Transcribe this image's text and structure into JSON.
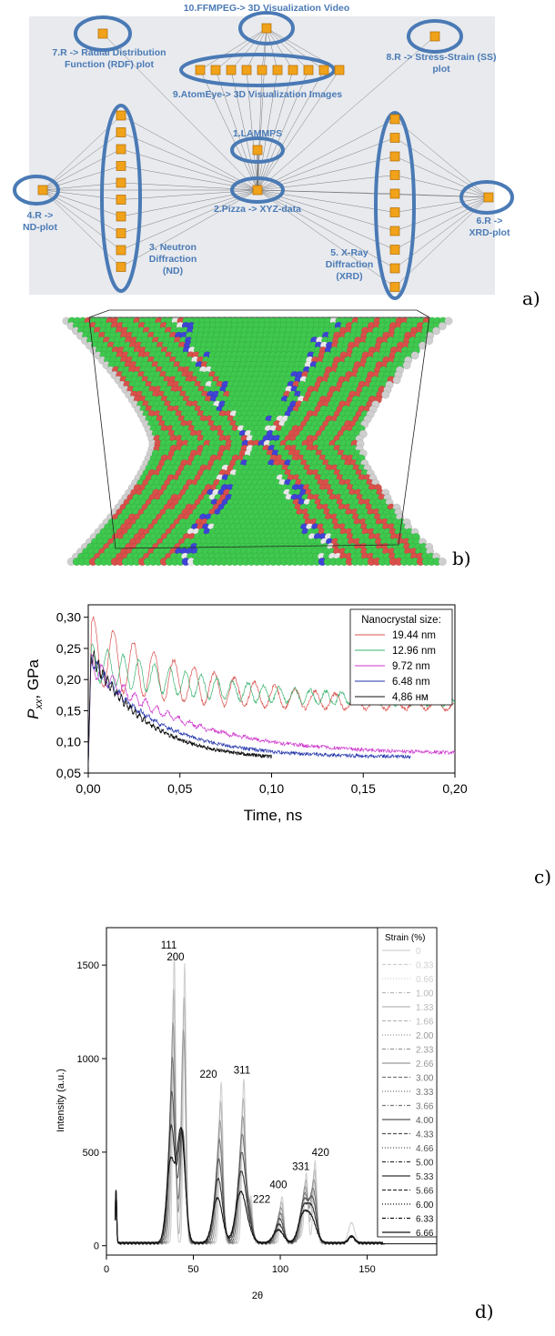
{
  "panel_labels": {
    "a": "a)",
    "b": "b)",
    "c": "c)",
    "d": "d)"
  },
  "workflow": {
    "colors": {
      "ellipse": "#4a7ab5",
      "label": "#4a7ab5",
      "node": "#f0a21a",
      "bg": "#e8eaee"
    },
    "nodes": {
      "n10": "10.FFMPEG-> 3D Visualization Video",
      "n7": "7.R -> Radial Distribution Function (RDF) plot",
      "n8": "8.R -> Stress-Strain (SS) plot",
      "n9": "9.AtomEye-> 3D Visualization Images",
      "n1": "1.LAMMPS",
      "n2": "2.Pizza -> XYZ-data",
      "n4": "4.R -> ND-plot",
      "n6": "6.R -> XRD-plot",
      "n3": "3. Neutron Diffraction (ND)",
      "n5": "5. X-Ray Diffraction (XRD)"
    }
  },
  "chart_data": [
    {
      "type": "line",
      "xlabel": "Time, ns",
      "ylabel": "P_xx, GPa",
      "xlim": [
        0,
        0.2
      ],
      "ylim": [
        0.05,
        0.32
      ],
      "xticks": [
        "0,00",
        "0,05",
        "0,10",
        "0,15",
        "0,20"
      ],
      "yticks": [
        "0,05",
        "0,10",
        "0,15",
        "0,20",
        "0,25",
        "0,30"
      ],
      "legend_title": "Nanocrystal size:",
      "legend_position": "top-right",
      "series": [
        {
          "name": "19.44 nm",
          "color": "#d9534f",
          "tend": 0.2,
          "y0": 0.25,
          "yinf": 0.155,
          "tau": 0.06,
          "amp": 0.055,
          "period": 0.011,
          "damp": 0.09
        },
        {
          "name": "12.96 nm",
          "color": "#3cb371",
          "tend": 0.2,
          "y0": 0.23,
          "yinf": 0.16,
          "tau": 0.07,
          "amp": 0.03,
          "period": 0.0085,
          "damp": 0.12
        },
        {
          "name": "9.72 nm",
          "color": "#cc33cc",
          "tend": 0.2,
          "y0": 0.23,
          "yinf": 0.08,
          "tau": 0.05,
          "amp": 0.02,
          "period": 0.006,
          "damp": 0.03
        },
        {
          "name": "6.48 nm",
          "color": "#2233aa",
          "tend": 0.176,
          "y0": 0.24,
          "yinf": 0.075,
          "tau": 0.035,
          "amp": 0.012,
          "period": 0.004,
          "damp": 0.02
        },
        {
          "name": "4,86 нм",
          "color": "#111111",
          "tend": 0.1,
          "y0": 0.25,
          "yinf": 0.07,
          "tau": 0.03,
          "amp": 0.014,
          "period": 0.0025,
          "damp": 0.02
        }
      ]
    },
    {
      "type": "line",
      "xlabel": "2θ",
      "ylabel": "Intensity (a.u.)",
      "xlim": [
        0,
        190
      ],
      "ylim": [
        -50,
        1700
      ],
      "xticks": [
        "0",
        "50",
        "100",
        "150"
      ],
      "yticks": [
        "0",
        "500",
        "1000",
        "1500"
      ],
      "legend_title": "Strain (%)",
      "legend_position": "right",
      "strains": [
        "0",
        "0.33",
        "0.66",
        "1.00",
        "1.33",
        "1.66",
        "2.00",
        "2.33",
        "2.66",
        "3.00",
        "3.33",
        "3.66",
        "4.00",
        "4.33",
        "4.66",
        "5.00",
        "5.33",
        "5.66",
        "6.00",
        "6.33",
        "6.66"
      ],
      "peaks": [
        {
          "label": "111",
          "x": 39,
          "y": 1550
        },
        {
          "label": "200",
          "x": 45,
          "y": 1500
        },
        {
          "label": "220",
          "x": 66,
          "y": 860
        },
        {
          "label": "311",
          "x": 79,
          "y": 880
        },
        {
          "label": "222",
          "x": 83,
          "y": 250
        },
        {
          "label": "400",
          "x": 101,
          "y": 250
        },
        {
          "label": "331",
          "x": 115,
          "y": 345
        },
        {
          "label": "420",
          "x": 120,
          "y": 440
        }
      ]
    }
  ]
}
